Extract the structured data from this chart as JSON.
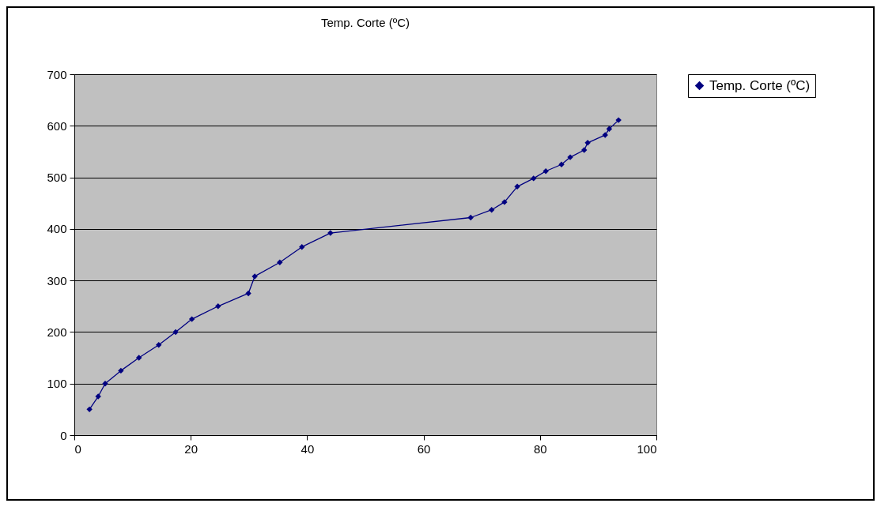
{
  "chart_data": {
    "type": "line",
    "title": "Temp. Corte (ºC)",
    "x": [
      2.6,
      4.1,
      5.3,
      8.0,
      11.1,
      14.5,
      17.4,
      20.2,
      24.7,
      29.9,
      31.0,
      35.3,
      39.1,
      44.0,
      68.1,
      71.7,
      73.9,
      76.1,
      78.9,
      81.0,
      83.7,
      85.2,
      87.6,
      88.2,
      91.2,
      91.9,
      93.5
    ],
    "series": [
      {
        "name": "Temp. Corte (ºC)",
        "color": "#000080",
        "values": [
          50,
          75,
          100,
          125,
          150,
          175,
          200,
          225,
          250,
          275,
          308,
          335,
          365,
          392,
          422,
          437,
          452,
          482,
          498,
          512,
          525,
          539,
          553,
          567,
          582,
          594,
          611
        ]
      }
    ],
    "xlim": [
      0,
      100
    ],
    "xticks": [
      0,
      20,
      40,
      60,
      80,
      100
    ],
    "ylim": [
      0,
      700
    ],
    "yticks": [
      0,
      100,
      200,
      300,
      400,
      500,
      600,
      700
    ],
    "grid": "y",
    "legend": "right",
    "marker": "diamond",
    "line_style": "solid"
  }
}
